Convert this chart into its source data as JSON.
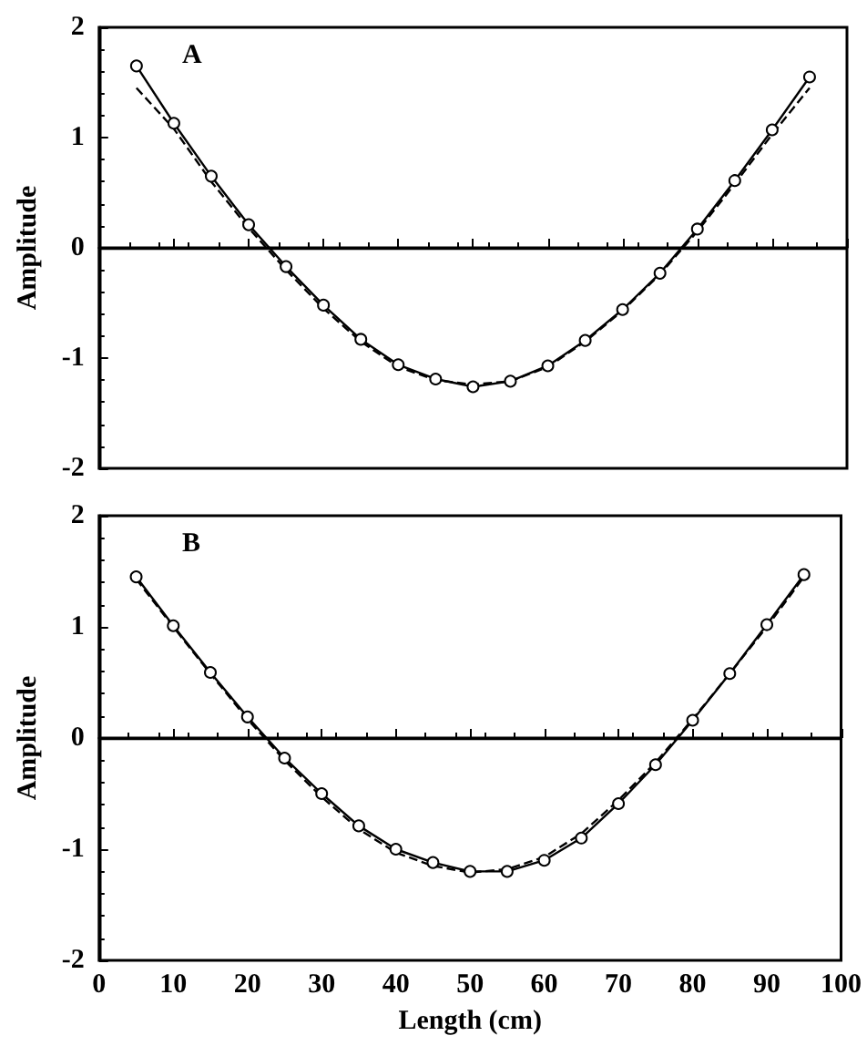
{
  "chart_data": [
    {
      "type": "line",
      "annotations": [
        "A"
      ],
      "ylabel": "Amplitude",
      "x": [
        5,
        10,
        15,
        20,
        25,
        30,
        35,
        40,
        45,
        50,
        55,
        60,
        65,
        70,
        75,
        80,
        85,
        90,
        95
      ],
      "xlim": [
        0,
        100
      ],
      "xticks": [
        0,
        10,
        20,
        30,
        40,
        50,
        60,
        70,
        80,
        90,
        100
      ],
      "ylim": [
        -2,
        2
      ],
      "yticks": [
        -2,
        -1,
        0,
        1,
        2
      ],
      "tick_labels": "y",
      "grid": false,
      "ref_lines": [
        {
          "axis": "y",
          "value": 0,
          "color": "#000000"
        }
      ],
      "series": [
        {
          "color": "#000000",
          "marker": "circle",
          "line_style": "solid",
          "values": [
            1.65,
            1.13,
            0.65,
            0.21,
            -0.17,
            -0.52,
            -0.83,
            -1.06,
            -1.19,
            -1.26,
            -1.21,
            -1.07,
            -0.84,
            -0.56,
            -0.23,
            0.17,
            0.61,
            1.07,
            1.55
          ]
        },
        {
          "color": "#000000",
          "marker": "none",
          "line_style": "dashed",
          "values": [
            1.45,
            1.08,
            0.6,
            0.18,
            -0.2,
            -0.55,
            -0.85,
            -1.08,
            -1.2,
            -1.24,
            -1.21,
            -1.08,
            -0.85,
            -0.57,
            -0.24,
            0.15,
            0.58,
            1.03,
            1.45
          ]
        }
      ]
    },
    {
      "type": "line",
      "annotations": [
        "B"
      ],
      "xlabel": "Length (cm)",
      "ylabel": "Amplitude",
      "x": [
        5,
        10,
        15,
        20,
        25,
        30,
        35,
        40,
        45,
        50,
        55,
        60,
        65,
        70,
        75,
        80,
        85,
        90,
        95
      ],
      "xlim": [
        0,
        100
      ],
      "xticks": [
        0,
        10,
        20,
        30,
        40,
        50,
        60,
        70,
        80,
        90,
        100
      ],
      "ylim": [
        -2,
        2
      ],
      "yticks": [
        -2,
        -1,
        0,
        1,
        2
      ],
      "grid": false,
      "ref_lines": [
        {
          "axis": "y",
          "value": 0,
          "color": "#000000"
        }
      ],
      "series": [
        {
          "color": "#000000",
          "marker": "circle",
          "line_style": "solid",
          "values": [
            1.45,
            1.01,
            0.59,
            0.19,
            -0.18,
            -0.5,
            -0.79,
            -1.0,
            -1.12,
            -1.2,
            -1.2,
            -1.1,
            -0.9,
            -0.59,
            -0.24,
            0.16,
            0.58,
            1.02,
            1.47
          ]
        },
        {
          "color": "#000000",
          "marker": "none",
          "line_style": "dashed",
          "values": [
            1.43,
            1.0,
            0.58,
            0.17,
            -0.2,
            -0.53,
            -0.82,
            -1.03,
            -1.15,
            -1.21,
            -1.18,
            -1.07,
            -0.86,
            -0.56,
            -0.22,
            0.17,
            0.58,
            1.0,
            1.45
          ]
        }
      ]
    }
  ]
}
